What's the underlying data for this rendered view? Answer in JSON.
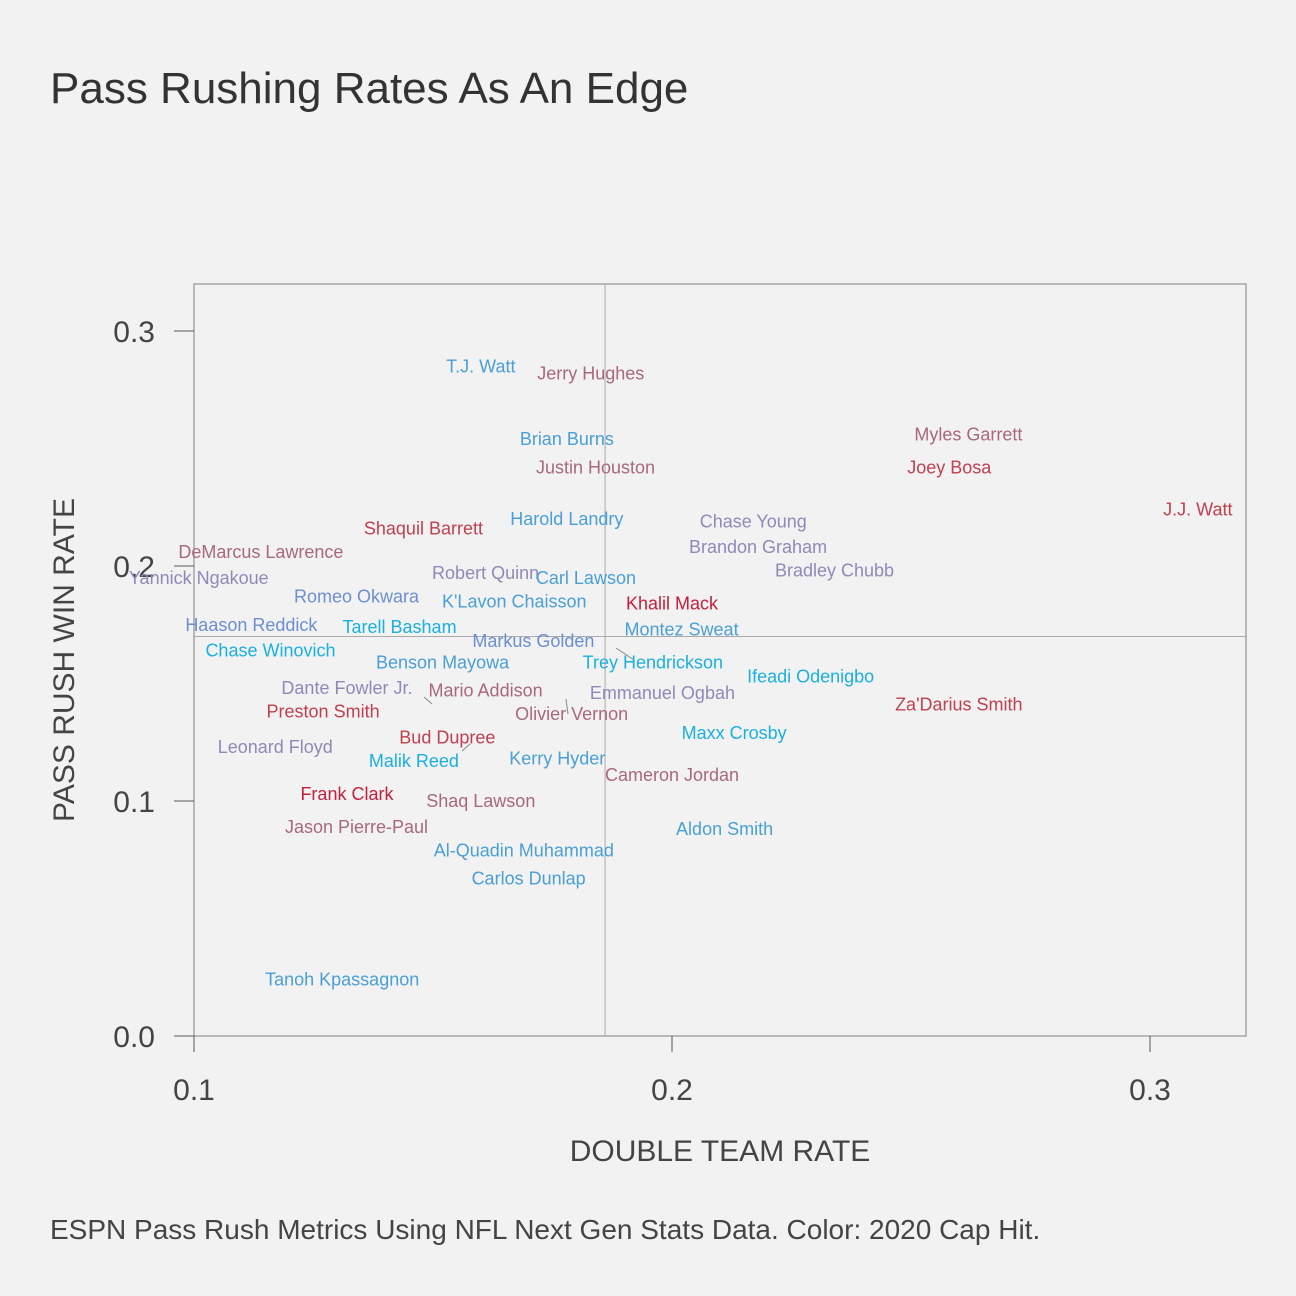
{
  "title": "Pass Rushing Rates As An Edge",
  "caption": "ESPN Pass Rush Metrics Using NFL Next Gen Stats Data. Color: 2020 Cap Hit.",
  "chart_data": {
    "type": "scatter",
    "title": "Pass Rushing Rates As An Edge",
    "xlabel": "DOUBLE TEAM RATE",
    "ylabel": "PASS RUSH WIN RATE",
    "xlim": [
      0.1,
      0.32
    ],
    "ylim": [
      0.0,
      0.32
    ],
    "xticks": [
      0.1,
      0.2,
      0.3
    ],
    "yticks": [
      0.0,
      0.1,
      0.2,
      0.3
    ],
    "xtick_labels": [
      "0.1",
      "0.2",
      "0.3"
    ],
    "ytick_labels": [
      "0.0",
      "0.1",
      "0.2",
      "0.3"
    ],
    "reference_lines": {
      "x": 0.186,
      "y": 0.17
    },
    "grid": false,
    "legend": "none",
    "color_encoding": "2020 Cap Hit (blue = lower, red = higher)",
    "points": [
      {
        "name": "T.J. Watt",
        "x": 0.16,
        "y": 0.285,
        "color": "#4a9fd4"
      },
      {
        "name": "Jerry Hughes",
        "x": 0.183,
        "y": 0.282,
        "color": "#a8687f"
      },
      {
        "name": "Brian Burns",
        "x": 0.178,
        "y": 0.254,
        "color": "#4a9fd4"
      },
      {
        "name": "Justin Houston",
        "x": 0.184,
        "y": 0.242,
        "color": "#a8687f"
      },
      {
        "name": "Myles Garrett",
        "x": 0.262,
        "y": 0.256,
        "color": "#a8687f"
      },
      {
        "name": "Joey Bosa",
        "x": 0.258,
        "y": 0.242,
        "color": "#c0404e"
      },
      {
        "name": "J.J. Watt",
        "x": 0.31,
        "y": 0.224,
        "color": "#c0404e"
      },
      {
        "name": "Harold Landry",
        "x": 0.178,
        "y": 0.22,
        "color": "#4a9fd4"
      },
      {
        "name": "Shaquil Barrett",
        "x": 0.148,
        "y": 0.216,
        "color": "#c0404e"
      },
      {
        "name": "Chase Young",
        "x": 0.217,
        "y": 0.219,
        "color": "#9288b8"
      },
      {
        "name": "Brandon Graham",
        "x": 0.218,
        "y": 0.208,
        "color": "#9288b8"
      },
      {
        "name": "DeMarcus Lawrence",
        "x": 0.114,
        "y": 0.206,
        "color": "#a8687f"
      },
      {
        "name": "Robert Quinn",
        "x": 0.161,
        "y": 0.197,
        "color": "#9288b8"
      },
      {
        "name": "Yannick Ngakoue",
        "x": 0.101,
        "y": 0.195,
        "color": "#9288b8"
      },
      {
        "name": "Bradley Chubb",
        "x": 0.234,
        "y": 0.198,
        "color": "#9288b8"
      },
      {
        "name": "Carl Lawson",
        "x": 0.182,
        "y": 0.195,
        "color": "#4a9fd4"
      },
      {
        "name": "Romeo Okwara",
        "x": 0.134,
        "y": 0.187,
        "color": "#6b8fd0"
      },
      {
        "name": "K'Lavon Chaisson",
        "x": 0.167,
        "y": 0.185,
        "color": "#4a9fd4"
      },
      {
        "name": "Khalil Mack",
        "x": 0.2,
        "y": 0.184,
        "color": "#c41e3a"
      },
      {
        "name": "Haason Reddick",
        "x": 0.112,
        "y": 0.175,
        "color": "#6b8fd0"
      },
      {
        "name": "Tarell Basham",
        "x": 0.143,
        "y": 0.174,
        "color": "#1ab0e0"
      },
      {
        "name": "Montez Sweat",
        "x": 0.202,
        "y": 0.173,
        "color": "#4a9fd4"
      },
      {
        "name": "Markus Golden",
        "x": 0.171,
        "y": 0.168,
        "color": "#6b8fd0"
      },
      {
        "name": "Chase Winovich",
        "x": 0.116,
        "y": 0.164,
        "color": "#1ab0e0"
      },
      {
        "name": "Benson Mayowa",
        "x": 0.152,
        "y": 0.159,
        "color": "#4a9fd4"
      },
      {
        "name": "Trey Hendrickson",
        "x": 0.196,
        "y": 0.159,
        "color": "#1ab0e0"
      },
      {
        "name": "Ifeadi Odenigbo",
        "x": 0.229,
        "y": 0.153,
        "color": "#1ab0e0"
      },
      {
        "name": "Dante Fowler Jr.",
        "x": 0.132,
        "y": 0.148,
        "color": "#9288b8"
      },
      {
        "name": "Mario Addison",
        "x": 0.161,
        "y": 0.147,
        "color": "#a8687f"
      },
      {
        "name": "Emmanuel Ogbah",
        "x": 0.198,
        "y": 0.146,
        "color": "#9288b8"
      },
      {
        "name": "Za'Darius Smith",
        "x": 0.26,
        "y": 0.141,
        "color": "#c0404e"
      },
      {
        "name": "Preston Smith",
        "x": 0.127,
        "y": 0.138,
        "color": "#c0404e"
      },
      {
        "name": "Olivier Vernon",
        "x": 0.179,
        "y": 0.137,
        "color": "#a8687f"
      },
      {
        "name": "Maxx Crosby",
        "x": 0.213,
        "y": 0.129,
        "color": "#1ab0e0"
      },
      {
        "name": "Bud Dupree",
        "x": 0.153,
        "y": 0.127,
        "color": "#c0404e"
      },
      {
        "name": "Leonard Floyd",
        "x": 0.117,
        "y": 0.123,
        "color": "#9288b8"
      },
      {
        "name": "Malik Reed",
        "x": 0.146,
        "y": 0.117,
        "color": "#1ab0e0"
      },
      {
        "name": "Kerry Hyder",
        "x": 0.176,
        "y": 0.118,
        "color": "#4a9fd4"
      },
      {
        "name": "Cameron Jordan",
        "x": 0.2,
        "y": 0.111,
        "color": "#a8687f"
      },
      {
        "name": "Frank Clark",
        "x": 0.132,
        "y": 0.103,
        "color": "#c41e3a"
      },
      {
        "name": "Shaq Lawson",
        "x": 0.16,
        "y": 0.1,
        "color": "#a8687f"
      },
      {
        "name": "Jason Pierre-Paul",
        "x": 0.134,
        "y": 0.089,
        "color": "#a8687f"
      },
      {
        "name": "Aldon Smith",
        "x": 0.211,
        "y": 0.088,
        "color": "#4a9fd4"
      },
      {
        "name": "Al-Quadin Muhammad",
        "x": 0.169,
        "y": 0.079,
        "color": "#4a9fd4"
      },
      {
        "name": "Carlos Dunlap",
        "x": 0.17,
        "y": 0.067,
        "color": "#4a9fd4"
      },
      {
        "name": "Tanoh Kpassagnon",
        "x": 0.131,
        "y": 0.024,
        "color": "#4a9fd4"
      }
    ]
  }
}
